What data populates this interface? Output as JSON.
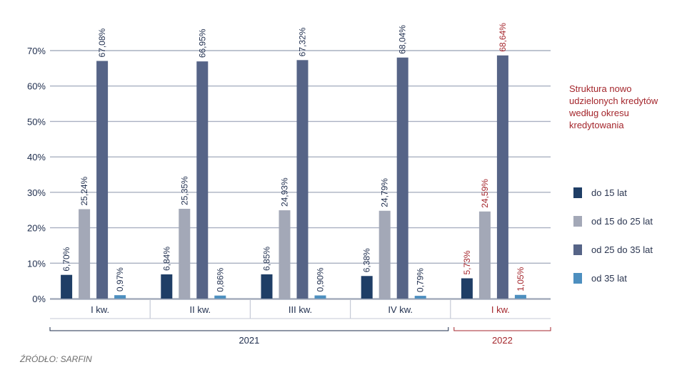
{
  "chart_data": {
    "type": "bar",
    "categories": [
      "I kw.",
      "II kw.",
      "III kw.",
      "IV kw.",
      "I kw."
    ],
    "years": [
      {
        "label": "2021",
        "quarters": [
          0,
          1,
          2,
          3
        ],
        "color": "#1e2d4d"
      },
      {
        "label": "2022",
        "quarters": [
          4
        ],
        "color": "#a4262c"
      }
    ],
    "series": [
      {
        "name": "do 15 lat",
        "color": "#1f3e66",
        "values": [
          6.7,
          6.84,
          6.85,
          6.38,
          5.73
        ],
        "labels": [
          "6,70%",
          "6,84%",
          "6,85%",
          "6,38%",
          "5,73%"
        ]
      },
      {
        "name": "od 15 do 25 lat",
        "color": "#a3a8b7",
        "values": [
          25.24,
          25.35,
          24.93,
          24.79,
          24.59
        ],
        "labels": [
          "25,24%",
          "25,35%",
          "24,93%",
          "24,79%",
          "24,59%"
        ]
      },
      {
        "name": "od 25 do 35 lat",
        "color": "#566487",
        "values": [
          67.08,
          66.95,
          67.32,
          68.04,
          68.64
        ],
        "labels": [
          "67,08%",
          "66,95%",
          "67,32%",
          "68,04%",
          "68,64%"
        ]
      },
      {
        "name": "od 35 lat",
        "color": "#4d8fbf",
        "values": [
          0.97,
          0.86,
          0.9,
          0.79,
          1.05
        ],
        "labels": [
          "0,97%",
          "0,86%",
          "0,90%",
          "0,79%",
          "1,05%"
        ]
      }
    ],
    "highlight_category": 4,
    "highlight_color": "#a4262c",
    "ylim": [
      0,
      70
    ],
    "yticks": [
      0,
      10,
      20,
      30,
      40,
      50,
      60,
      70
    ],
    "ytick_labels": [
      "0%",
      "10%",
      "20%",
      "30%",
      "40%",
      "50%",
      "60%",
      "70%"
    ],
    "grid": true,
    "legend_position": "right"
  },
  "side_title": "Struktura nowo udzielonych kredytów według okresu kredytowania",
  "source": "ŹRÓDŁO: SARFIN",
  "legend": [
    {
      "label": "do 15 lat",
      "color": "#1f3e66"
    },
    {
      "label": "od 15 do 25 lat",
      "color": "#a3a8b7"
    },
    {
      "label": "od 25 do 35 lat",
      "color": "#566487"
    },
    {
      "label": "od 35 lat",
      "color": "#4d8fbf"
    }
  ]
}
